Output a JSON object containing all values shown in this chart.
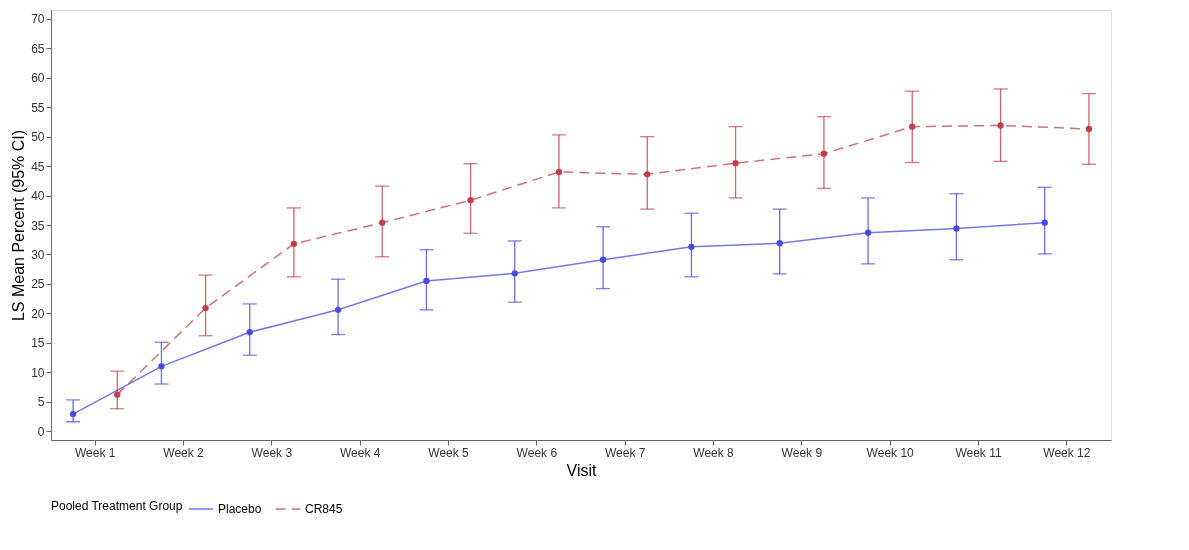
{
  "chart_data": {
    "type": "line",
    "xlabel": "Visit",
    "ylabel": "LS Mean Percent (95% CI)",
    "legend_title": "Pooled Treatment Group",
    "categories": [
      "Week 1",
      "Week 2",
      "Week 3",
      "Week 4",
      "Week 5",
      "Week 6",
      "Week 7",
      "Week 8",
      "Week 9",
      "Week 10",
      "Week 11",
      "Week 12"
    ],
    "series": [
      {
        "name": "Placebo",
        "color": "#4a4ae0",
        "line_style": "solid",
        "values": [
          2.9,
          11.0,
          16.8,
          20.6,
          25.5,
          26.8,
          29.1,
          31.3,
          31.9,
          33.7,
          34.4,
          35.4
        ],
        "errors": [
          [
            1.6,
            5.3
          ],
          [
            8.0,
            15.1
          ],
          [
            12.9,
            21.6
          ],
          [
            16.4,
            25.8
          ],
          [
            20.6,
            30.8
          ],
          [
            21.9,
            32.3
          ],
          [
            24.2,
            34.7
          ],
          [
            26.2,
            37.0
          ],
          [
            26.7,
            37.7
          ],
          [
            28.4,
            39.6
          ],
          [
            29.1,
            40.3
          ],
          [
            30.1,
            41.4
          ]
        ]
      },
      {
        "name": "CR845",
        "color": "#c0404a",
        "line_style": "dashed",
        "values": [
          6.2,
          20.9,
          31.8,
          35.4,
          39.2,
          44.0,
          43.6,
          45.5,
          47.1,
          51.7,
          51.9,
          51.3
        ],
        "errors": [
          [
            3.8,
            10.2
          ],
          [
            16.2,
            26.5
          ],
          [
            26.2,
            37.9
          ],
          [
            29.6,
            41.6
          ],
          [
            33.6,
            45.4
          ],
          [
            37.9,
            50.3
          ],
          [
            37.7,
            50.0
          ],
          [
            39.6,
            51.7
          ],
          [
            41.2,
            53.4
          ],
          [
            45.6,
            57.7
          ],
          [
            45.8,
            58.1
          ],
          [
            45.3,
            57.3
          ]
        ]
      }
    ],
    "ylim": [
      -1.5,
      71.5
    ],
    "yticks": [
      0,
      5,
      10,
      15,
      20,
      25,
      30,
      35,
      40,
      45,
      50,
      55,
      60,
      65,
      70
    ],
    "grid": false,
    "legend": "bottom",
    "marker": "circle"
  }
}
